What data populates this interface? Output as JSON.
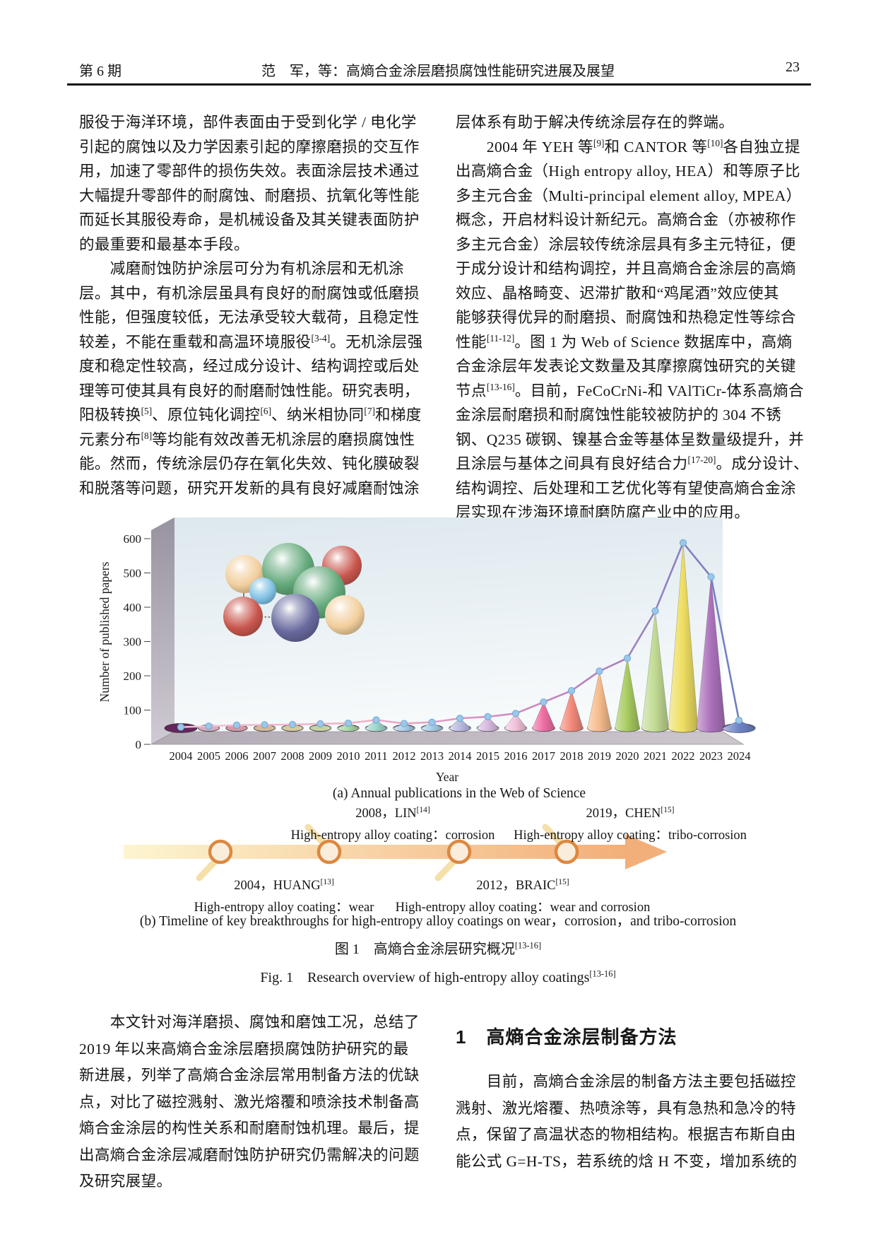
{
  "header": {
    "issue": "第 6 期",
    "title": "范　军，等：高熵合金涂层磨损腐蚀性能研究进展及展望",
    "page_number": "23"
  },
  "columns": {
    "left_top": [
      "服役于海洋环境，部件表面由于受到化学 / 电化学",
      "引起的腐蚀以及力学因素引起的摩擦磨损的交互作",
      "用，加速了零部件的损伤失效。表面涂层技术通过",
      "大幅提升零部件的耐腐蚀、耐磨损、抗氧化等性能",
      "而延长其服役寿命，是机械设备及其关键表面防护",
      "的最重要和最基本手段。",
      "　　减磨耐蚀防护涂层可分为有机涂层和无机涂",
      "层。其中，有机涂层虽具有良好的耐腐蚀或低磨损",
      "性能，但强度较低，无法承受较大载荷，且稳定性",
      "较差，不能在重载和高温环境服役[3-4]。无机涂层强",
      "度和稳定性较高，经过成分设计、结构调控或后处",
      "理等可使其具有良好的耐磨耐蚀性能。研究表明，",
      "阳极转换[5]、原位钝化调控[6]、纳米相协同[7]和梯度",
      "元素分布[8]等均能有效改善无机涂层的磨损腐蚀性",
      "能。然而，传统涂层仍存在氧化失效、钝化膜破裂",
      "和脱落等问题，研究开发新的具有良好减磨耐蚀涂"
    ],
    "right_top": [
      "层体系有助于解决传统涂层存在的弊端。",
      "　　2004 年 YEH 等[9]和 CANTOR 等[10]各自独立提",
      "出高熵合金（High entropy alloy, HEA）和等原子比",
      "多主元合金（Multi-principal element alloy, MPEA）",
      "概念，开启材料设计新纪元。高熵合金（亦被称作",
      "多主元合金）涂层较传统涂层具有多主元特征，便",
      "于成分设计和结构调控，并且高熵合金涂层的高熵",
      "效应、晶格畸变、迟滞扩散和“鸡尾酒”效应使其",
      "能够获得优异的耐磨损、耐腐蚀和热稳定性等综合",
      "性能[11-12]。图 1 为 Web of Science 数据库中，高熵",
      "合金涂层年发表论文数量及其摩擦腐蚀研究的关键",
      "节点[13-16]。目前，FeCoCrNi-和 VAlTiCr-体系高熵合",
      "金涂层耐磨损和耐腐蚀性能较被防护的 304 不锈",
      "钢、Q235 碳钢、镍基合金等基体呈数量级提升，并",
      "且涂层与基体之间具有良好结合力[17-20]。成分设计、",
      "结构调控、后处理和工艺优化等有望使高熵合金涂",
      "层实现在涉海环境耐磨防腐产业中的应用。"
    ],
    "left_bottom": [
      "　　本文针对海洋磨损、腐蚀和磨蚀工况，总结了",
      "2019 年以来高熵合金涂层磨损腐蚀防护研究的最",
      "新进展，列举了高熵合金涂层常用制备方法的优缺",
      "点，对比了磁控溅射、激光熔覆和喷涂技术制备高",
      "熵合金涂层的构性关系和耐磨耐蚀机理。最后，提",
      "出高熵合金涂层减磨耐蚀防护研究仍需解决的问题",
      "及研究展望。"
    ],
    "section": {
      "number": "1",
      "title": "高熵合金涂层制备方法"
    },
    "right_bottom": [
      "　　目前，高熵合金涂层的制备方法主要包括磁控",
      "溅射、激光熔覆、热喷涂等，具有急热和急冷的特",
      "点，保留了高温状态的物相结构。根据吉布斯自由",
      "能公式 G=H-TS，若系统的焓 H 不变，增加系统的"
    ]
  },
  "figure": {
    "caption_a": "(a) Annual publications in the Web of Science",
    "caption_b": "(b) Timeline of key breakthroughs for high-entropy alloy coatings on wear，corrosion，and tribo-corrosion",
    "caption_zh": "图 1　高熵合金涂层研究概况[13-16]",
    "caption_en": "Fig. 1　Research overview of high-entropy alloy coatings[13-16]"
  },
  "chart_data": {
    "type": "bar",
    "subtype": "3d-cones-with-marker-line",
    "categories": [
      2004,
      2005,
      2006,
      2007,
      2008,
      2009,
      2010,
      2011,
      2012,
      2013,
      2014,
      2015,
      2016,
      2017,
      2018,
      2019,
      2020,
      2021,
      2022,
      2023,
      2024
    ],
    "values": [
      3,
      6,
      9,
      10,
      11,
      13,
      15,
      25,
      14,
      18,
      30,
      35,
      45,
      80,
      115,
      175,
      215,
      360,
      570,
      465,
      24
    ],
    "xlabel": "Year",
    "ylabel": "Number of published papers",
    "ylim": [
      0,
      600
    ],
    "ytick_step": 100,
    "cone_colors": [
      "#722A66",
      "#F3C3D6",
      "#F3AEB9",
      "#F1D5AA",
      "#F4E6B4",
      "#E3EDB9",
      "#ADD9A9",
      "#A0D8CE",
      "#ABD0EA",
      "#A9CEE8",
      "#BDBDE4",
      "#D9BCE0",
      "#F2C3DC",
      "#F06FA5",
      "#F48B7B",
      "#F7BC8C",
      "#A9CC62",
      "#C2DB93",
      "#EFDF63",
      "#AC72BC",
      "#7185C9"
    ],
    "line_gradient": [
      "#EFC6D4",
      "#F2AFC8",
      "#C583BE",
      "#6F7EC4"
    ],
    "dot_color": "#9CC7E8",
    "wall_colors": {
      "back_top": "#DDE8EE",
      "back_bottom": "#F7FAFB",
      "left_top": "#9893A0",
      "left_bottom": "#CFCAD3",
      "floor_left": "#B3ACB6",
      "floor_right": "#CDC6CD"
    },
    "inset_atoms": [
      {
        "x": 256,
        "y": 90,
        "r": 27,
        "color": "#F2CF9D"
      },
      {
        "x": 318,
        "y": 83,
        "r": 37,
        "color": "#63A97B"
      },
      {
        "x": 394,
        "y": 78,
        "r": 28,
        "color": "#C9574E"
      },
      {
        "x": 282,
        "y": 114,
        "r": 19,
        "color": "#7FC0E4"
      },
      {
        "x": 362,
        "y": 116,
        "r": 37,
        "color": "#63A97B"
      },
      {
        "x": 254,
        "y": 150,
        "r": 28,
        "color": "#C9574E"
      },
      {
        "x": 328,
        "y": 152,
        "r": 34,
        "color": "#686A9E"
      },
      {
        "x": 398,
        "y": 148,
        "r": 28,
        "color": "#F2CF9D"
      }
    ],
    "inset_bonds": [
      [
        0,
        1,
        "dot"
      ],
      [
        1,
        2,
        "dot"
      ],
      [
        0,
        5,
        "solid"
      ],
      [
        2,
        7,
        "solid"
      ],
      [
        5,
        6,
        "dot"
      ],
      [
        6,
        7,
        "dot"
      ],
      [
        1,
        6,
        "dot"
      ]
    ]
  },
  "timeline": {
    "arrow_colors": [
      "#FCF5D0",
      "#F3AF79"
    ],
    "node_ring_color": "#DD8840",
    "node_fill": "#FBEDDC",
    "stub_color": "#F5DFA6",
    "events": [
      {
        "title": "2004，HUANG[13]",
        "desc": "High-entropy alloy coating：wear",
        "side": "below",
        "x": 222
      },
      {
        "title": "2008，LIN[14]",
        "desc": "High-entropy alloy coating：corrosion",
        "side": "above",
        "x": 376
      },
      {
        "title": "2012，BRAIC[15]",
        "desc": "High-entropy alloy coating：wear and corrosion",
        "side": "below",
        "x": 560
      },
      {
        "title": "2019，CHEN[15]",
        "desc": "High-entropy alloy coating：tribo-corrosion",
        "side": "above",
        "x": 712
      }
    ]
  }
}
